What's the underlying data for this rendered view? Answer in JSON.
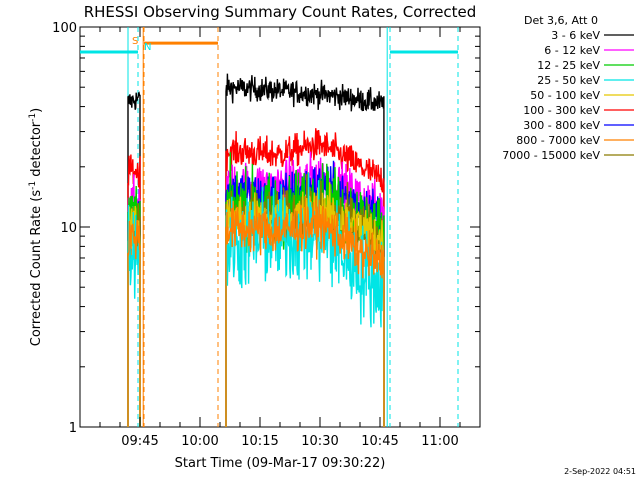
{
  "chart_data": {
    "type": "line",
    "title": "RHESSI Observing Summary Count Rates, Corrected",
    "xlabel": "Start Time (09-Mar-17 09:30:22)",
    "ylabel_main": "Corrected Count Rate (s",
    "ylabel_sup1": "-1",
    "ylabel_mid": " detector",
    "ylabel_sup2": "-1",
    "ylabel_end": ")",
    "yscale": "log",
    "ylim": [
      1,
      100
    ],
    "xlim_minutes": [
      0,
      100
    ],
    "x_ticks": [
      {
        "label": "09:45",
        "minute": 15
      },
      {
        "label": "10:00",
        "minute": 30
      },
      {
        "label": "10:15",
        "minute": 45
      },
      {
        "label": "10:30",
        "minute": 60
      },
      {
        "label": "10:45",
        "minute": 75
      },
      {
        "label": "11:00",
        "minute": 90
      }
    ],
    "y_ticks": [
      {
        "label": "1",
        "value": 1
      },
      {
        "label": "10",
        "value": 10
      },
      {
        "label": "100",
        "value": 100
      }
    ],
    "legend_header": "Det 3,6, Att 0",
    "legend": [
      {
        "label": "3 - 6 keV",
        "color": "#000000"
      },
      {
        "label": "6 - 12 keV",
        "color": "#ff00ff"
      },
      {
        "label": "12 - 25 keV",
        "color": "#00cc00"
      },
      {
        "label": "25 - 50 keV",
        "color": "#00e5e5"
      },
      {
        "label": "50 - 100 keV",
        "color": "#e5c800"
      },
      {
        "label": "100 - 300 keV",
        "color": "#ff0000"
      },
      {
        "label": "300 - 800 keV",
        "color": "#0000ff"
      },
      {
        "label": "800 - 7000 keV",
        "color": "#ff8000"
      },
      {
        "label": "7000 - 15000 keV",
        "color": "#8b7a00"
      }
    ],
    "segments": [
      {
        "start": 12.0,
        "end": 15.0
      },
      {
        "start": 36.5,
        "end": 76.0
      }
    ],
    "series": [
      {
        "name": "3 - 6 keV",
        "color": "#000000",
        "levels": [
          [
            12,
            42
          ],
          [
            15,
            44
          ],
          [
            36.5,
            50
          ],
          [
            50,
            48
          ],
          [
            65,
            45
          ],
          [
            76,
            41
          ]
        ],
        "noise": 0.03
      },
      {
        "name": "100 - 300 keV",
        "color": "#ff0000",
        "levels": [
          [
            12,
            19
          ],
          [
            15,
            19
          ],
          [
            36.5,
            24
          ],
          [
            50,
            23
          ],
          [
            60,
            26
          ],
          [
            70,
            20
          ],
          [
            76,
            17
          ]
        ],
        "noise": 0.04
      },
      {
        "name": "6 - 12 keV",
        "color": "#ff00ff",
        "levels": [
          [
            12,
            13
          ],
          [
            15,
            13
          ],
          [
            36.5,
            16
          ],
          [
            50,
            16
          ],
          [
            60,
            18
          ],
          [
            70,
            14
          ],
          [
            76,
            12
          ]
        ],
        "noise": 0.06
      },
      {
        "name": "300 - 800 keV",
        "color": "#0000ff",
        "levels": [
          [
            12,
            12
          ],
          [
            15,
            12
          ],
          [
            36.5,
            15
          ],
          [
            50,
            14
          ],
          [
            60,
            16
          ],
          [
            70,
            13
          ],
          [
            76,
            11
          ]
        ],
        "noise": 0.06
      },
      {
        "name": "12 - 25 keV",
        "color": "#00cc00",
        "levels": [
          [
            12,
            11
          ],
          [
            15,
            11
          ],
          [
            36.5,
            13
          ],
          [
            50,
            12
          ],
          [
            60,
            14
          ],
          [
            70,
            11
          ],
          [
            76,
            9
          ]
        ],
        "noise": 0.09
      },
      {
        "name": "7000 - 15000 keV",
        "color": "#8b7a00",
        "levels": [
          [
            12,
            10
          ],
          [
            15,
            10
          ],
          [
            36.5,
            11
          ],
          [
            50,
            11
          ],
          [
            60,
            12
          ],
          [
            70,
            10
          ],
          [
            76,
            8.5
          ]
        ],
        "noise": 0.07
      },
      {
        "name": "50 - 100 keV",
        "color": "#e5c800",
        "levels": [
          [
            12,
            10
          ],
          [
            15,
            10
          ],
          [
            36.5,
            11
          ],
          [
            50,
            11
          ],
          [
            60,
            12
          ],
          [
            70,
            10
          ],
          [
            76,
            8.5
          ]
        ],
        "noise": 0.06
      },
      {
        "name": "25 - 50 keV",
        "color": "#00e5e5",
        "levels": [
          [
            12,
            8
          ],
          [
            15,
            8
          ],
          [
            36.5,
            8
          ],
          [
            50,
            9
          ],
          [
            60,
            9
          ],
          [
            70,
            6
          ],
          [
            76,
            5
          ]
        ],
        "noise": 0.12
      },
      {
        "name": "800 - 7000 keV",
        "color": "#ff8000",
        "levels": [
          [
            12,
            9
          ],
          [
            15,
            9
          ],
          [
            36.5,
            10
          ],
          [
            50,
            9.5
          ],
          [
            60,
            10.5
          ],
          [
            70,
            7.5
          ],
          [
            76,
            6.5
          ]
        ],
        "noise": 0.06
      }
    ],
    "flags": {
      "saa_label": "S",
      "night_label": "N",
      "saa_color": "#ff8000",
      "night_color": "#00e5e5",
      "night_bars": [
        {
          "start": 0,
          "end": 14.5
        },
        {
          "start": 77.5,
          "end": 94.5
        }
      ],
      "saa_bars": [
        {
          "start": 16.0,
          "end": 34.5
        }
      ],
      "night_bar_value": 75,
      "saa_bar_value": 83,
      "night_lines": [
        14.5,
        77.5,
        94.5
      ],
      "saa_lines": [
        16.0,
        34.5
      ],
      "solid_lines": [
        {
          "minute": 12.0,
          "color": "#00e5e5"
        },
        {
          "minute": 15.8,
          "color": "#ff8000"
        },
        {
          "minute": 76.8,
          "color": "#00e5e5"
        }
      ]
    }
  },
  "footer": {
    "timestamp": "2-Sep-2022 04:51"
  }
}
